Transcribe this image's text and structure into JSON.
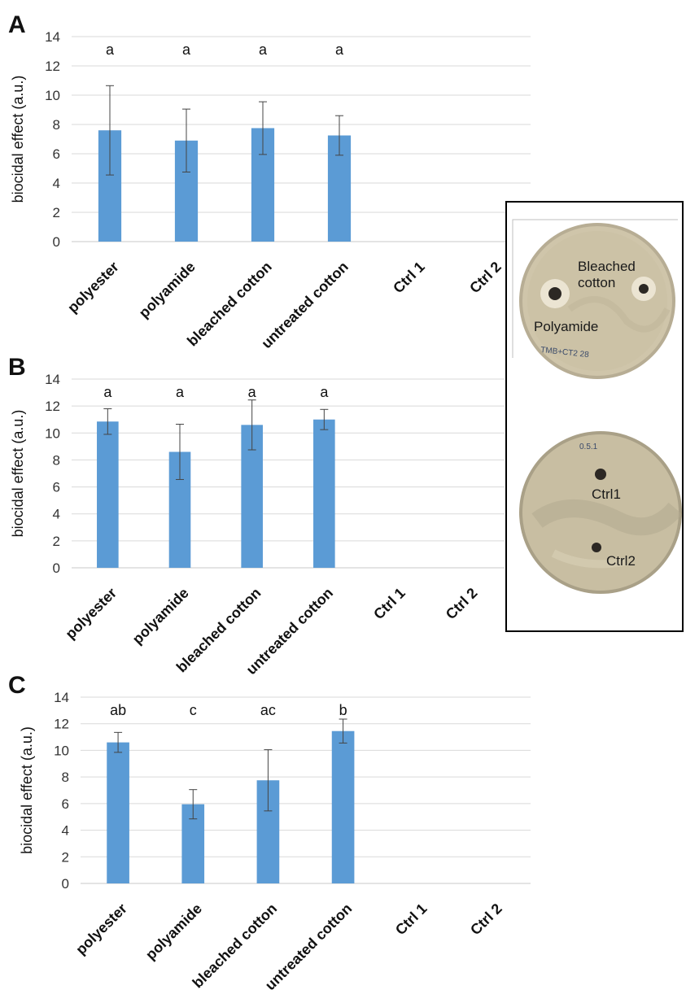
{
  "chart_data": [
    {
      "panel": "A",
      "type": "bar",
      "categories": [
        "polyester",
        "polyamide",
        "bleached cotton",
        "untreated cotton",
        "Ctrl 1",
        "Ctrl 2"
      ],
      "values": [
        7.6,
        6.9,
        7.75,
        7.25,
        null,
        null
      ],
      "errors": [
        3.05,
        2.15,
        1.8,
        1.35,
        null,
        null
      ],
      "letters": [
        "a",
        "a",
        "a",
        "a",
        "",
        ""
      ],
      "ylabel": "biocidal effect (a.u.)",
      "ylim": [
        0,
        14
      ],
      "yticks": [
        0,
        2,
        4,
        6,
        8,
        10,
        12,
        14
      ],
      "grid": true,
      "bar_color": "#5b9bd5"
    },
    {
      "panel": "B",
      "type": "bar",
      "categories": [
        "polyester",
        "polyamide",
        "bleached cotton",
        "untreated cotton",
        "Ctrl 1",
        "Ctrl 2"
      ],
      "values": [
        10.85,
        8.6,
        10.6,
        11.0,
        null,
        null
      ],
      "errors": [
        0.95,
        2.05,
        1.85,
        0.75,
        null,
        null
      ],
      "letters": [
        "a",
        "a",
        "a",
        "a",
        "",
        ""
      ],
      "ylabel": "biocidal effect (a.u.)",
      "ylim": [
        0,
        14
      ],
      "yticks": [
        0,
        2,
        4,
        6,
        8,
        10,
        12,
        14
      ],
      "grid": true,
      "bar_color": "#5b9bd5"
    },
    {
      "panel": "C",
      "type": "bar",
      "categories": [
        "polyester",
        "polyamide",
        "bleached cotton",
        "untreated cotton",
        "Ctrl 1",
        "Ctrl 2"
      ],
      "values": [
        10.6,
        5.95,
        7.75,
        11.45,
        null,
        null
      ],
      "errors": [
        0.75,
        1.1,
        2.3,
        0.9,
        null,
        null
      ],
      "letters": [
        "ab",
        "c",
        "ac",
        "b",
        "",
        ""
      ],
      "ylabel": "biocidal effect (a.u.)",
      "ylim": [
        0,
        14
      ],
      "yticks": [
        0,
        2,
        4,
        6,
        8,
        10,
        12,
        14
      ],
      "grid": true,
      "bar_color": "#5b9bd5"
    }
  ],
  "plates": {
    "top": {
      "labels": {
        "bleached": "Bleached\ncotton",
        "polyamide": "Polyamide",
        "handwriting": "TMB+CT2 28"
      }
    },
    "bottom": {
      "labels": {
        "ctrl1": "Ctrl1",
        "ctrl2": "Ctrl2",
        "handwriting": "0.5.1"
      }
    }
  },
  "colors": {
    "bar": "#5b9bd5",
    "grid": "#d9d9d9",
    "plate_fill": "#cdc3a8",
    "plate_rim": "#8f8672",
    "inset_border": "#000000"
  }
}
